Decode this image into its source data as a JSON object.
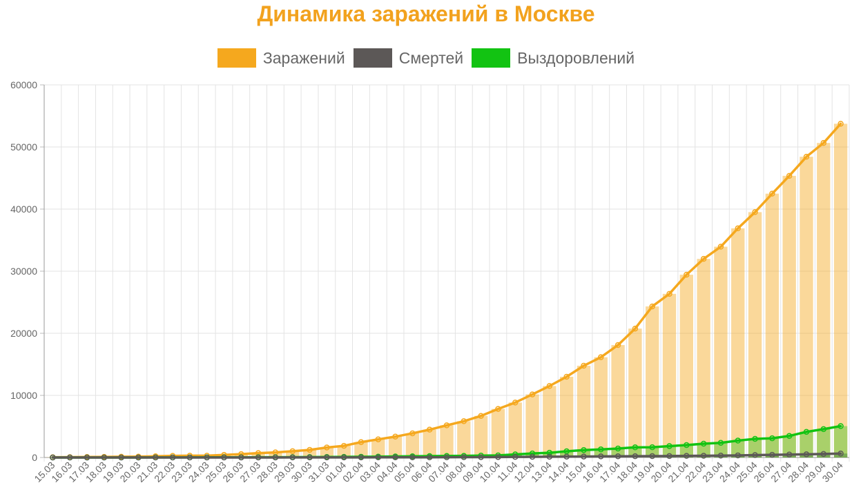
{
  "colors": {
    "title": "#f2a21e"
  },
  "chart_data": {
    "type": "bar",
    "title": "Динамика заражений в Москве",
    "xlabel": "",
    "ylabel": "",
    "ylim": [
      0,
      60000
    ],
    "yticks": [
      0,
      10000,
      20000,
      30000,
      40000,
      50000,
      60000
    ],
    "grid": true,
    "legend_position": "top",
    "categories": [
      "15.03",
      "16.03",
      "17.03",
      "18.03",
      "19.03",
      "20.03",
      "21.03",
      "22.03",
      "23.03",
      "24.03",
      "25.03",
      "26.03",
      "27.03",
      "28.03",
      "29.03",
      "30.03",
      "31.03",
      "01.04",
      "02.04",
      "03.04",
      "04.04",
      "05.04",
      "06.04",
      "07.04",
      "08.04",
      "09.04",
      "10.04",
      "11.04",
      "12.04",
      "13.04",
      "14.04",
      "15.04",
      "16.04",
      "17.04",
      "18.04",
      "19.04",
      "20.04",
      "21.04",
      "22.04",
      "23.04",
      "24.04",
      "25.04",
      "26.04",
      "27.04",
      "28.04",
      "29.04",
      "30.04"
    ],
    "series": [
      {
        "name": "Заражений",
        "color": "#f5a81e",
        "values": [
          35,
          53,
          86,
          98,
          131,
          137,
          191,
          262,
          290,
          290,
          410,
          546,
          703,
          817,
          1014,
          1226,
          1613,
          1880,
          2475,
          2923,
          3357,
          3893,
          4484,
          5181,
          5841,
          6698,
          7822,
          8852,
          10158,
          11513,
          13002,
          14776,
          16146,
          18105,
          20754,
          24324,
          26350,
          29433,
          31981,
          33940,
          36897,
          39509,
          42480,
          45351,
          48426,
          50646,
          53739
        ]
      },
      {
        "name": "Смертей",
        "color": "#5c5857",
        "values": [
          0,
          0,
          0,
          0,
          0,
          0,
          0,
          0,
          1,
          1,
          1,
          2,
          3,
          5,
          8,
          10,
          11,
          15,
          20,
          26,
          29,
          29,
          34,
          44,
          50,
          58,
          72,
          96,
          106,
          123,
          140,
          159,
          182,
          196,
          208,
          222,
          235,
          262,
          278,
          308,
          340,
          389,
          432,
          466,
          510,
          564,
          638
        ]
      },
      {
        "name": "Выздоровлений",
        "color": "#12c312",
        "values": [
          0,
          0,
          0,
          0,
          0,
          5,
          10,
          15,
          18,
          21,
          24,
          30,
          40,
          46,
          52,
          70,
          87,
          97,
          118,
          141,
          165,
          191,
          221,
          244,
          264,
          310,
          333,
          497,
          650,
          761,
          1001,
          1197,
          1312,
          1439,
          1639,
          1653,
          1837,
          1999,
          2220,
          2360,
          2719,
          2995,
          3097,
          3472,
          4128,
          4567,
          5052
        ]
      }
    ]
  }
}
